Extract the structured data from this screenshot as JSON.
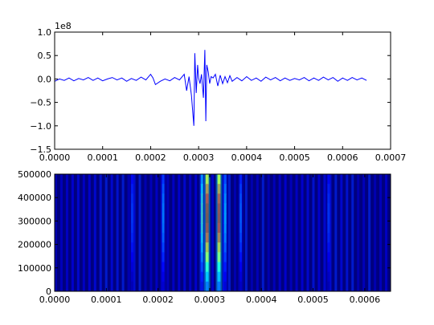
{
  "chart_data": [
    {
      "type": "line",
      "title": "",
      "xlabel": "",
      "ylabel": "",
      "offset_text": "1e8",
      "xlim": [
        0,
        0.0007
      ],
      "ylim": [
        -1.5,
        1.0
      ],
      "x_ticks": [
        0,
        0.0001,
        0.0002,
        0.0003,
        0.0004,
        0.0005,
        0.0006,
        0.0007
      ],
      "x_tick_labels": [
        "0.0000",
        "0.0001",
        "0.0002",
        "0.0003",
        "0.0004",
        "0.0005",
        "0.0006",
        "0.0007"
      ],
      "y_ticks": [
        1.0,
        0.5,
        0.0,
        -0.5,
        -1.0,
        -1.5
      ],
      "y_tick_labels": [
        "1.0",
        "0.5",
        "0.0",
        "−0.5",
        "−1.0",
        "−1.5"
      ],
      "line_color": "#0000ff",
      "grid": false,
      "series": [
        {
          "x": [
            0,
            1e-05,
            2e-05,
            3e-05,
            4e-05,
            5e-05,
            6e-05,
            7e-05,
            8e-05,
            9e-05,
            0.0001,
            0.00011,
            0.00012,
            0.00013,
            0.00014,
            0.00015,
            0.00016,
            0.00017,
            0.00018,
            0.00019,
            0.0002,
            0.000205,
            0.00021,
            0.00022,
            0.00023,
            0.00024,
            0.00025,
            0.00026,
            0.00027,
            0.000275,
            0.00028,
            0.000285,
            0.00029,
            0.000292,
            0.000295,
            0.000298,
            0.0003,
            0.000303,
            0.000306,
            0.00031,
            0.000313,
            0.000315,
            0.000317,
            0.00032,
            0.000323,
            0.000326,
            0.00033,
            0.000335,
            0.00034,
            0.000345,
            0.00035,
            0.000355,
            0.00036,
            0.000365,
            0.00037,
            0.00038,
            0.00039,
            0.0004,
            0.00041,
            0.00042,
            0.00043,
            0.00044,
            0.00045,
            0.00046,
            0.00047,
            0.00048,
            0.00049,
            0.0005,
            0.00051,
            0.00052,
            0.00053,
            0.00054,
            0.00055,
            0.00056,
            0.00057,
            0.00058,
            0.00059,
            0.0006,
            0.00061,
            0.00062,
            0.00063,
            0.00064,
            0.00065
          ],
          "y": [
            -0.05,
            0.0,
            -0.03,
            0.02,
            -0.04,
            0.01,
            -0.02,
            0.03,
            -0.03,
            0.02,
            -0.04,
            0.0,
            0.03,
            -0.02,
            0.02,
            -0.05,
            0.01,
            -0.03,
            0.04,
            -0.02,
            0.1,
            0.02,
            -0.12,
            -0.05,
            0.0,
            -0.04,
            0.03,
            -0.02,
            0.1,
            -0.25,
            0.05,
            -0.35,
            -1.0,
            0.55,
            -0.3,
            0.3,
            0.02,
            -0.1,
            0.1,
            -0.4,
            0.62,
            -0.9,
            0.3,
            0.15,
            -0.1,
            0.05,
            0.02,
            0.1,
            -0.15,
            0.08,
            -0.1,
            0.05,
            -0.08,
            0.07,
            -0.05,
            0.03,
            -0.04,
            0.05,
            -0.03,
            0.02,
            -0.05,
            0.04,
            -0.02,
            0.03,
            -0.04,
            0.02,
            -0.03,
            0.01,
            -0.02,
            0.03,
            -0.04,
            0.02,
            -0.03,
            0.04,
            -0.02,
            0.03,
            -0.05,
            0.02,
            -0.03,
            0.03,
            -0.02,
            0.02,
            -0.03
          ]
        }
      ]
    },
    {
      "type": "heatmap",
      "title": "",
      "xlabel": "",
      "ylabel": "",
      "xlim": [
        0,
        0.00065
      ],
      "ylim": [
        0,
        500000
      ],
      "x_ticks": [
        0,
        0.0001,
        0.0002,
        0.0003,
        0.0004,
        0.0005,
        0.0006
      ],
      "x_tick_labels": [
        "0.0000",
        "0.0001",
        "0.0002",
        "0.0003",
        "0.0004",
        "0.0005",
        "0.0006"
      ],
      "y_ticks": [
        0,
        100000,
        200000,
        300000,
        400000,
        500000
      ],
      "y_tick_labels": [
        "0",
        "100000",
        "200000",
        "300000",
        "400000",
        "500000"
      ],
      "colormap": "jet",
      "background_color": "#00007f",
      "bands": [
        {
          "x": 0.000295,
          "width": 6e-06,
          "level": 0.95
        },
        {
          "x": 0.000318,
          "width": 6e-06,
          "level": 0.92
        },
        {
          "x": 0.000285,
          "width": 4e-06,
          "level": 0.45
        },
        {
          "x": 0.00033,
          "width": 4e-06,
          "level": 0.35
        },
        {
          "x": 0.00021,
          "width": 4e-06,
          "level": 0.3
        },
        {
          "x": 0.00036,
          "width": 4e-06,
          "level": 0.25
        },
        {
          "x": 0.00015,
          "width": 3e-06,
          "level": 0.2
        },
        {
          "x": 0.00053,
          "width": 4e-06,
          "level": 0.2
        }
      ]
    }
  ]
}
